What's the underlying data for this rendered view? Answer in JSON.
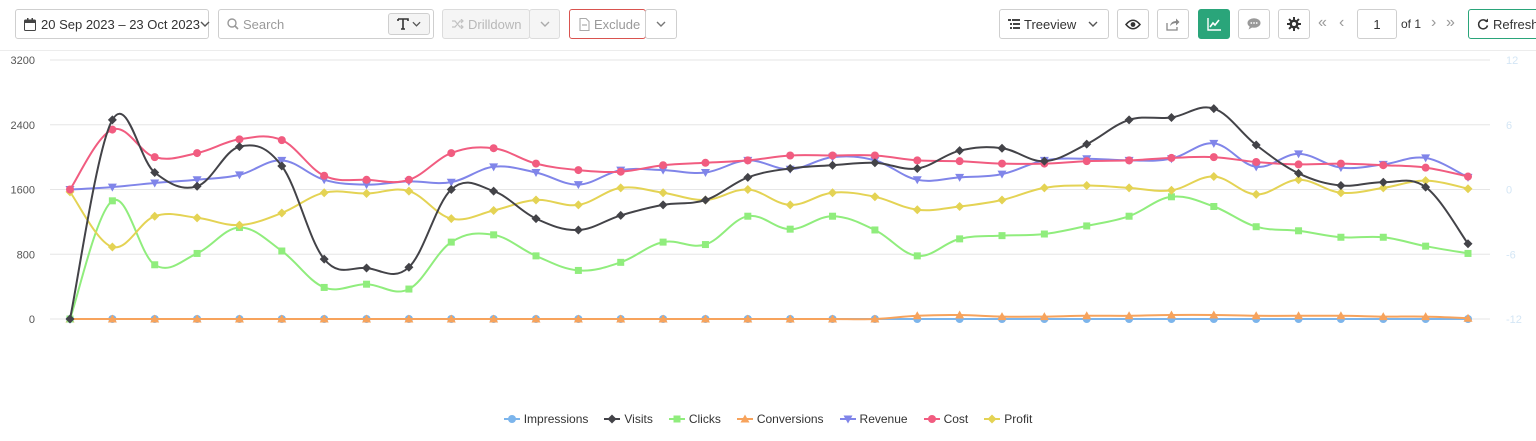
{
  "toolbar": {
    "date_range": "20 Sep 2023 – 23 Oct 2023",
    "search_placeholder": "Search",
    "drilldown_label": "Drilldown",
    "exclude_label": "Exclude",
    "view_select": "Treeview",
    "page_value": "1",
    "page_of": "of 1",
    "refresh_label": "Refresh"
  },
  "chart_data": {
    "type": "line",
    "x_count": 34,
    "y_left": {
      "min": 0,
      "max": 3200,
      "ticks": [
        "3200",
        "2400",
        "1600",
        "800",
        "0"
      ]
    },
    "y_right": {
      "min": -12,
      "max": 12,
      "ticks": [
        "12",
        "6",
        "0",
        "-6",
        "-12"
      ]
    },
    "grid": true,
    "legend_position": "bottom",
    "series": [
      {
        "name": "Impressions",
        "color": "#7cb5ec",
        "marker": "circle",
        "values": [
          0,
          0,
          0,
          0,
          0,
          0,
          0,
          0,
          0,
          0,
          0,
          0,
          0,
          0,
          0,
          0,
          0,
          0,
          0,
          0,
          0,
          0,
          0,
          0,
          0,
          0,
          0,
          0,
          0,
          0,
          0,
          0,
          0,
          0
        ]
      },
      {
        "name": "Visits",
        "color": "#434348",
        "marker": "diamond",
        "values": [
          0,
          2460,
          1810,
          1640,
          2130,
          1890,
          740,
          630,
          640,
          1600,
          1580,
          1240,
          1100,
          1280,
          1410,
          1470,
          1750,
          1860,
          1900,
          1930,
          1860,
          2080,
          2110,
          1950,
          2160,
          2460,
          2490,
          2600,
          2150,
          1800,
          1650,
          1690,
          1630,
          930
        ]
      },
      {
        "name": "Clicks",
        "color": "#90ed7d",
        "marker": "square",
        "values": [
          0,
          1460,
          670,
          810,
          1130,
          840,
          390,
          430,
          370,
          950,
          1040,
          780,
          600,
          700,
          950,
          920,
          1270,
          1110,
          1270,
          1100,
          780,
          990,
          1030,
          1050,
          1150,
          1270,
          1510,
          1390,
          1140,
          1090,
          1010,
          1010,
          900,
          810
        ]
      },
      {
        "name": "Conversions",
        "color": "#f7a35c",
        "marker": "triangle",
        "values": [
          0,
          0,
          0,
          0,
          0,
          0,
          0,
          0,
          0,
          0,
          0,
          0,
          0,
          0,
          0,
          0,
          0,
          0,
          0,
          0,
          40,
          50,
          30,
          30,
          40,
          40,
          50,
          50,
          40,
          40,
          40,
          30,
          30,
          10
        ]
      },
      {
        "name": "Revenue",
        "color": "#8085e9",
        "marker": "triangle-down",
        "values": [
          1600,
          1630,
          1680,
          1720,
          1780,
          1960,
          1720,
          1660,
          1700,
          1690,
          1880,
          1810,
          1660,
          1840,
          1840,
          1810,
          1960,
          1850,
          2000,
          1960,
          1720,
          1750,
          1790,
          1960,
          1980,
          1960,
          1980,
          2170,
          1880,
          2040,
          1870,
          1910,
          1990,
          1750
        ]
      },
      {
        "name": "Cost",
        "color": "#f15c80",
        "marker": "circle",
        "values": [
          1600,
          2340,
          2000,
          2050,
          2220,
          2210,
          1770,
          1720,
          1720,
          2050,
          2110,
          1920,
          1840,
          1820,
          1900,
          1930,
          1960,
          2020,
          2020,
          2020,
          1960,
          1950,
          1920,
          1920,
          1950,
          1960,
          1990,
          2000,
          1940,
          1910,
          1920,
          1900,
          1870,
          1760
        ]
      },
      {
        "name": "Profit",
        "color": "#e4d354",
        "marker": "diamond",
        "values": [
          1570,
          890,
          1270,
          1250,
          1160,
          1310,
          1560,
          1550,
          1580,
          1240,
          1340,
          1470,
          1410,
          1620,
          1560,
          1470,
          1600,
          1410,
          1560,
          1510,
          1350,
          1390,
          1470,
          1620,
          1650,
          1620,
          1590,
          1760,
          1540,
          1720,
          1560,
          1620,
          1710,
          1610
        ]
      }
    ]
  }
}
